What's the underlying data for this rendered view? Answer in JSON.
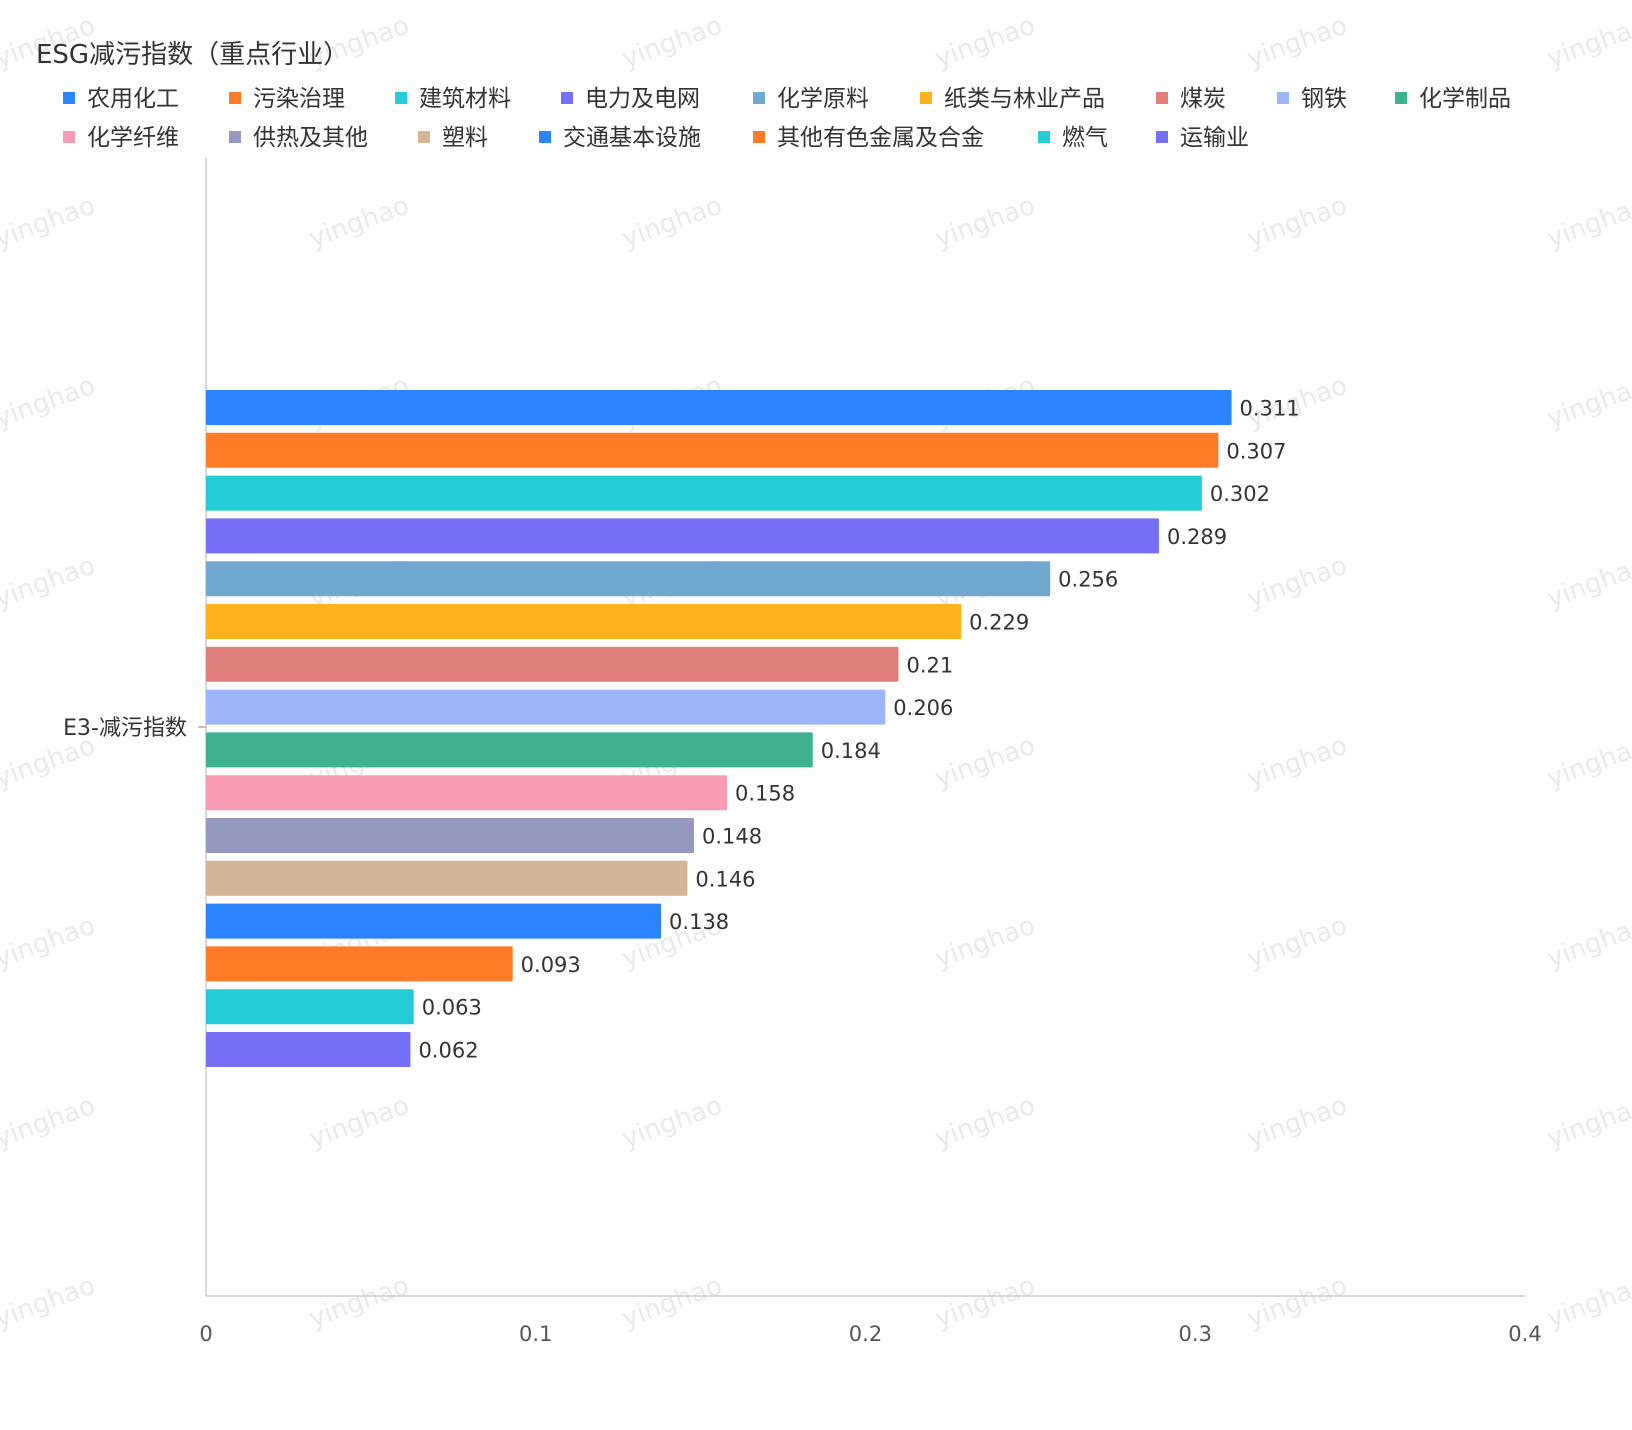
{
  "watermark": "yinghao",
  "chart_data": {
    "type": "bar",
    "orientation": "horizontal",
    "title": "ESG减污指数（重点行业）",
    "categories": [
      "E3-减污指数"
    ],
    "xlim": [
      0,
      0.4
    ],
    "x_ticks": [
      "0",
      "0.1",
      "0.2",
      "0.3",
      "0.4"
    ],
    "grid": false,
    "legend_position": "top",
    "series": [
      {
        "name": "农用化工",
        "color": "#2b84ff",
        "values": [
          0.311
        ],
        "label": "0.311"
      },
      {
        "name": "污染治理",
        "color": "#ff7b28",
        "values": [
          0.307
        ],
        "label": "0.307"
      },
      {
        "name": "建筑材料",
        "color": "#24ccd8",
        "values": [
          0.302
        ],
        "label": "0.302"
      },
      {
        "name": "电力及电网",
        "color": "#7670f6",
        "values": [
          0.289
        ],
        "label": "0.289"
      },
      {
        "name": "化学原料",
        "color": "#71a8cf",
        "values": [
          0.256
        ],
        "label": "0.256"
      },
      {
        "name": "纸类与林业产品",
        "color": "#ffb21c",
        "values": [
          0.229
        ],
        "label": "0.229"
      },
      {
        "name": "煤炭",
        "color": "#df8079",
        "values": [
          0.21
        ],
        "label": "0.21"
      },
      {
        "name": "钢铁",
        "color": "#9db5f9",
        "values": [
          0.206
        ],
        "label": "0.206"
      },
      {
        "name": "化学制品",
        "color": "#3db190",
        "values": [
          0.184
        ],
        "label": "0.184"
      },
      {
        "name": "化学纤维",
        "color": "#f79bb2",
        "values": [
          0.158
        ],
        "label": "0.158"
      },
      {
        "name": "供热及其他",
        "color": "#9598bf",
        "values": [
          0.148
        ],
        "label": "0.148"
      },
      {
        "name": "塑料",
        "color": "#d1b594",
        "values": [
          0.146
        ],
        "label": "0.146"
      },
      {
        "name": "交通基本设施",
        "color": "#2b84ff",
        "values": [
          0.138
        ],
        "label": "0.138"
      },
      {
        "name": "其他有色金属及合金",
        "color": "#ff7b28",
        "values": [
          0.093
        ],
        "label": "0.093"
      },
      {
        "name": "燃气",
        "color": "#24ccd8",
        "values": [
          0.063
        ],
        "label": "0.063"
      },
      {
        "name": "运输业",
        "color": "#7670f6",
        "values": [
          0.062
        ],
        "label": "0.062"
      }
    ]
  }
}
